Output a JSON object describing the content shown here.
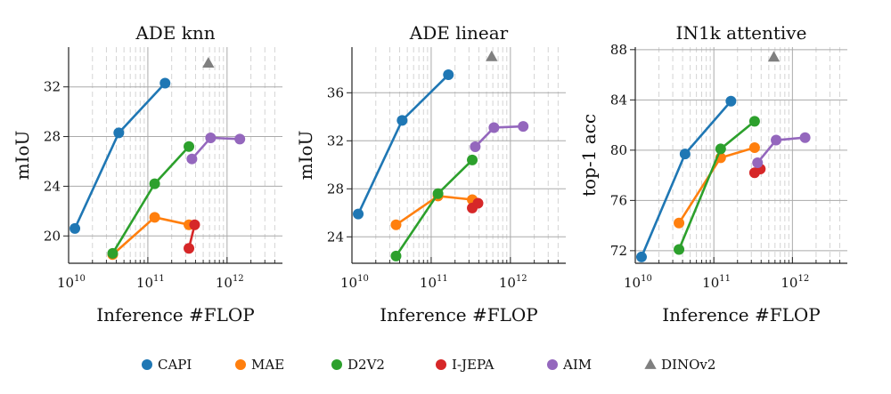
{
  "chart_data": [
    {
      "type": "line",
      "title": "ADE knn",
      "xlabel": "Inference #FLOP",
      "ylabel": "mIoU",
      "xscale": "log",
      "xlim": [
        10000000000.0,
        5000000000000.0
      ],
      "ylim": [
        17.8,
        35.2
      ],
      "yticks": [
        20,
        24,
        28,
        32
      ],
      "xticks": [
        {
          "base": "10",
          "exp": "10",
          "value": 10000000000.0
        },
        {
          "base": "10",
          "exp": "11",
          "value": 100000000000.0
        },
        {
          "base": "10",
          "exp": "12",
          "value": 1000000000000.0
        }
      ],
      "series": [
        {
          "name": "CAPI",
          "points": [
            [
              12000000000.0,
              20.6
            ],
            [
              43000000000.0,
              28.3
            ],
            [
              165000000000.0,
              32.3
            ]
          ]
        },
        {
          "name": "MAE",
          "points": [
            [
              36000000000.0,
              18.5
            ],
            [
              122000000000.0,
              21.5
            ],
            [
              330000000000.0,
              20.9
            ]
          ]
        },
        {
          "name": "D2V2",
          "points": [
            [
              36000000000.0,
              18.6
            ],
            [
              122000000000.0,
              24.2
            ],
            [
              330000000000.0,
              27.2
            ]
          ]
        },
        {
          "name": "I-JEPA",
          "points": [
            [
              330000000000.0,
              19.0
            ],
            [
              390000000000.0,
              20.9
            ]
          ]
        },
        {
          "name": "AIM",
          "points": [
            [
              360000000000.0,
              26.2
            ],
            [
              620000000000.0,
              27.9
            ],
            [
              1450000000000.0,
              27.8
            ]
          ]
        },
        {
          "name": "DINOv2",
          "points": [
            [
              580000000000.0,
              33.9
            ]
          ]
        }
      ]
    },
    {
      "type": "line",
      "title": "ADE linear",
      "xlabel": "Inference #FLOP",
      "ylabel": "mIoU",
      "xscale": "log",
      "xlim": [
        10000000000.0,
        5000000000000.0
      ],
      "ylim": [
        21.8,
        39.8
      ],
      "yticks": [
        24,
        28,
        32,
        36
      ],
      "xticks": [
        {
          "base": "10",
          "exp": "10",
          "value": 10000000000.0
        },
        {
          "base": "10",
          "exp": "11",
          "value": 100000000000.0
        },
        {
          "base": "10",
          "exp": "12",
          "value": 1000000000000.0
        }
      ],
      "series": [
        {
          "name": "CAPI",
          "points": [
            [
              12000000000.0,
              25.9
            ],
            [
              43000000000.0,
              33.7
            ],
            [
              165000000000.0,
              37.5
            ]
          ]
        },
        {
          "name": "MAE",
          "points": [
            [
              36000000000.0,
              25.0
            ],
            [
              122000000000.0,
              27.4
            ],
            [
              330000000000.0,
              27.1
            ]
          ]
        },
        {
          "name": "D2V2",
          "points": [
            [
              36000000000.0,
              22.4
            ],
            [
              122000000000.0,
              27.6
            ],
            [
              330000000000.0,
              30.4
            ]
          ]
        },
        {
          "name": "I-JEPA",
          "points": [
            [
              330000000000.0,
              26.4
            ],
            [
              390000000000.0,
              26.8
            ]
          ]
        },
        {
          "name": "AIM",
          "points": [
            [
              360000000000.0,
              31.5
            ],
            [
              620000000000.0,
              33.1
            ],
            [
              1450000000000.0,
              33.2
            ]
          ]
        },
        {
          "name": "DINOv2",
          "points": [
            [
              580000000000.0,
              39.0
            ]
          ]
        }
      ]
    },
    {
      "type": "line",
      "title": "IN1k attentive",
      "xlabel": "Inference #FLOP",
      "ylabel": "top-1 acc",
      "xscale": "log",
      "xlim": [
        10000000000.0,
        5000000000000.0
      ],
      "ylim": [
        71.0,
        88.2
      ],
      "yticks": [
        72,
        76,
        80,
        84,
        88
      ],
      "xticks": [
        {
          "base": "10",
          "exp": "10",
          "value": 10000000000.0
        },
        {
          "base": "10",
          "exp": "11",
          "value": 100000000000.0
        },
        {
          "base": "10",
          "exp": "12",
          "value": 1000000000000.0
        }
      ],
      "series": [
        {
          "name": "CAPI",
          "points": [
            [
              12000000000.0,
              71.5
            ],
            [
              43000000000.0,
              79.7
            ],
            [
              165000000000.0,
              83.9
            ]
          ]
        },
        {
          "name": "MAE",
          "points": [
            [
              36000000000.0,
              74.2
            ],
            [
              122000000000.0,
              79.4
            ],
            [
              330000000000.0,
              80.2
            ]
          ]
        },
        {
          "name": "D2V2",
          "points": [
            [
              36000000000.0,
              72.1
            ],
            [
              122000000000.0,
              80.1
            ],
            [
              330000000000.0,
              82.3
            ]
          ]
        },
        {
          "name": "I-JEPA",
          "points": [
            [
              330000000000.0,
              78.2
            ],
            [
              390000000000.0,
              78.5
            ]
          ]
        },
        {
          "name": "AIM",
          "points": [
            [
              360000000000.0,
              79.0
            ],
            [
              620000000000.0,
              80.8
            ],
            [
              1450000000000.0,
              81.0
            ]
          ]
        },
        {
          "name": "DINOv2",
          "points": [
            [
              580000000000.0,
              87.4
            ]
          ]
        }
      ]
    }
  ],
  "legend": [
    {
      "name": "CAPI",
      "color": "#1f77b4",
      "marker": "circle"
    },
    {
      "name": "MAE",
      "color": "#ff7f0e",
      "marker": "circle"
    },
    {
      "name": "D2V2",
      "color": "#2ca02c",
      "marker": "circle"
    },
    {
      "name": "I-JEPA",
      "color": "#d62728",
      "marker": "circle"
    },
    {
      "name": "AIM",
      "color": "#9467bd",
      "marker": "circle"
    },
    {
      "name": "DINOv2",
      "color": "#7f7f7f",
      "marker": "triangle"
    }
  ]
}
